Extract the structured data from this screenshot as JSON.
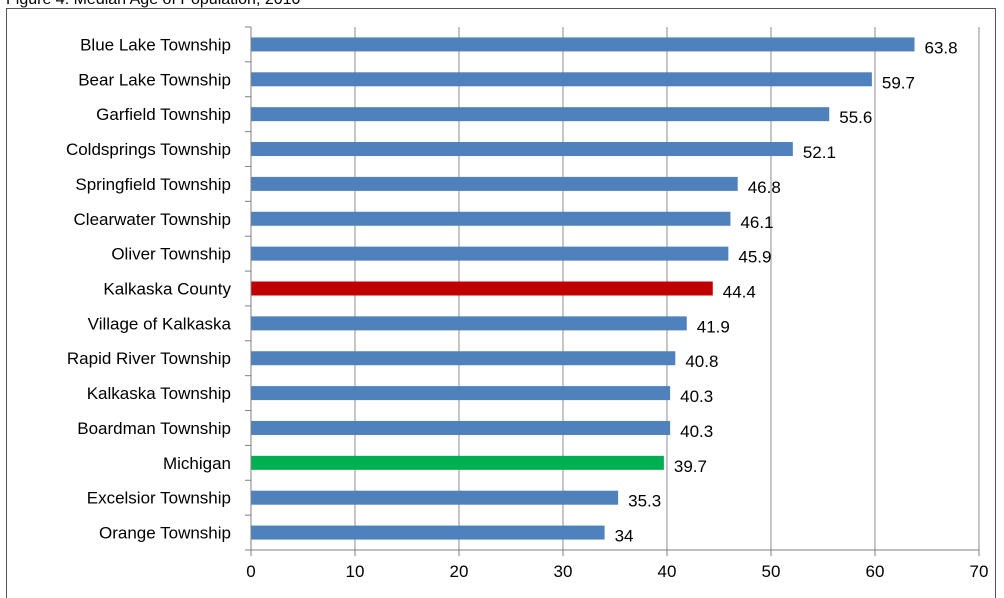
{
  "header_fragment": "Figure 4: Median Age of Population, 2010",
  "chart_data": {
    "type": "bar",
    "orientation": "horizontal",
    "title": "",
    "xlabel": "",
    "ylabel": "",
    "xlim": [
      0,
      70
    ],
    "x_ticks": [
      0,
      10,
      20,
      30,
      40,
      50,
      60,
      70
    ],
    "grid": true,
    "categories": [
      "Blue Lake Township",
      "Bear Lake Township",
      "Garfield Township",
      "Coldsprings Township",
      "Springfield Township",
      "Clearwater Township",
      "Oliver Township",
      "Kalkaska County",
      "Village of Kalkaska",
      "Rapid River Township",
      "Kalkaska Township",
      "Boardman Township",
      "Michigan",
      "Excelsior Township",
      "Orange Township"
    ],
    "values": [
      63.8,
      59.7,
      55.6,
      52.1,
      46.8,
      46.1,
      45.9,
      44.4,
      41.9,
      40.8,
      40.3,
      40.3,
      39.7,
      35.3,
      34
    ],
    "value_labels": [
      "63.8",
      "59.7",
      "55.6",
      "52.1",
      "46.8",
      "46.1",
      "45.9",
      "44.4",
      "41.9",
      "40.8",
      "40.3",
      "40.3",
      "39.7",
      "35.3",
      "34"
    ],
    "colors": {
      "default": "#4f81bd",
      "Kalkaska County": "#c00000",
      "Michigan": "#00b050"
    },
    "gridline_color": "#8c8c8c",
    "axis_color": "#7f7f7f"
  }
}
